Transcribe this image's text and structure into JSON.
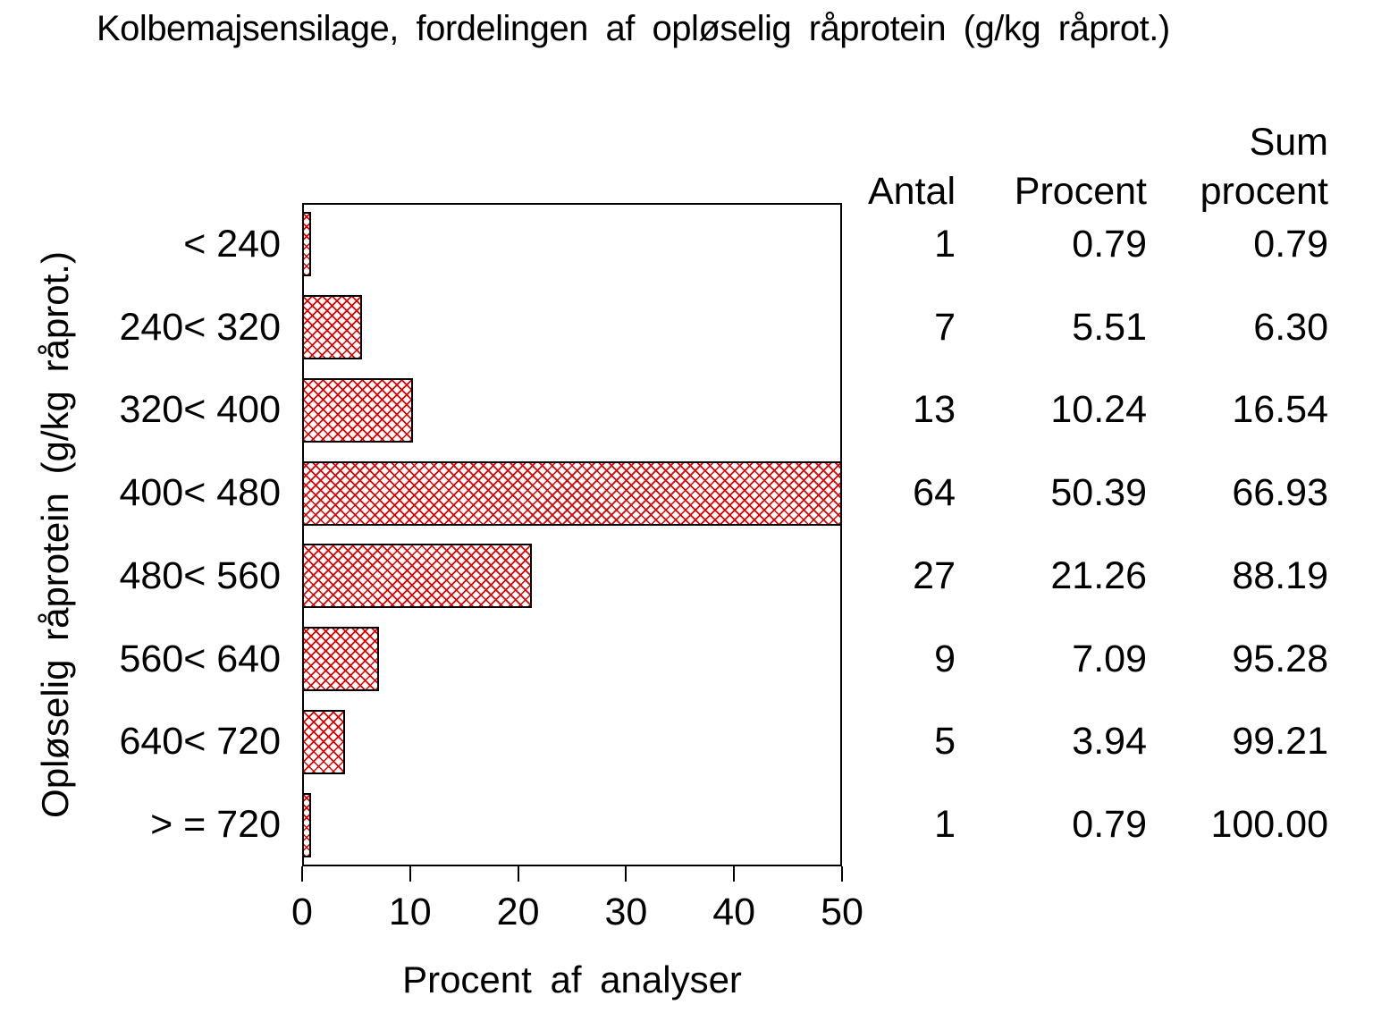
{
  "title": "Kolbemajsensilage, fordelingen af opløselig råprotein (g/kg råprot.)",
  "chart_data": {
    "type": "bar",
    "orientation": "horizontal",
    "title": "Kolbemajsensilage, fordelingen af opløselig råprotein (g/kg råprot.)",
    "xlabel": "Procent af analyser",
    "ylabel": "Opløselig råprotein (g/kg råprot.)",
    "xlim": [
      0,
      50
    ],
    "x_ticks": [
      "0",
      "10",
      "20",
      "30",
      "40",
      "50"
    ],
    "grid": false,
    "legend": false,
    "categories": [
      "< 240",
      "240< 320",
      "320< 400",
      "400< 480",
      "480< 560",
      "560< 640",
      "640< 720",
      "> = 720"
    ],
    "series": [
      {
        "name": "Antal",
        "values": [
          1,
          7,
          13,
          64,
          27,
          9,
          5,
          1
        ]
      },
      {
        "name": "Procent",
        "values": [
          0.79,
          5.51,
          10.24,
          50.39,
          21.26,
          7.09,
          3.94,
          0.79
        ]
      },
      {
        "name": "Sum procent",
        "values": [
          0.79,
          6.3,
          16.54,
          66.93,
          88.19,
          95.28,
          99.21,
          100.0
        ]
      }
    ],
    "bar_value_series": "Procent",
    "bar_fill": "crosshatch-pattern",
    "bar_pattern_color": "#e00000",
    "bar_border_color": "#000000",
    "frame_color": "#000000"
  },
  "table": {
    "headers": {
      "antal": "Antal",
      "procent": "Procent",
      "sum_line1": "Sum",
      "sum_line2": "procent"
    },
    "rows": [
      {
        "antal": "1",
        "procent": "0.79",
        "sum": "0.79"
      },
      {
        "antal": "7",
        "procent": "5.51",
        "sum": "6.30"
      },
      {
        "antal": "13",
        "procent": "10.24",
        "sum": "16.54"
      },
      {
        "antal": "64",
        "procent": "50.39",
        "sum": "66.93"
      },
      {
        "antal": "27",
        "procent": "21.26",
        "sum": "88.19"
      },
      {
        "antal": "9",
        "procent": "7.09",
        "sum": "95.28"
      },
      {
        "antal": "5",
        "procent": "3.94",
        "sum": "99.21"
      },
      {
        "antal": "1",
        "procent": "0.79",
        "sum": "100.00"
      }
    ]
  }
}
